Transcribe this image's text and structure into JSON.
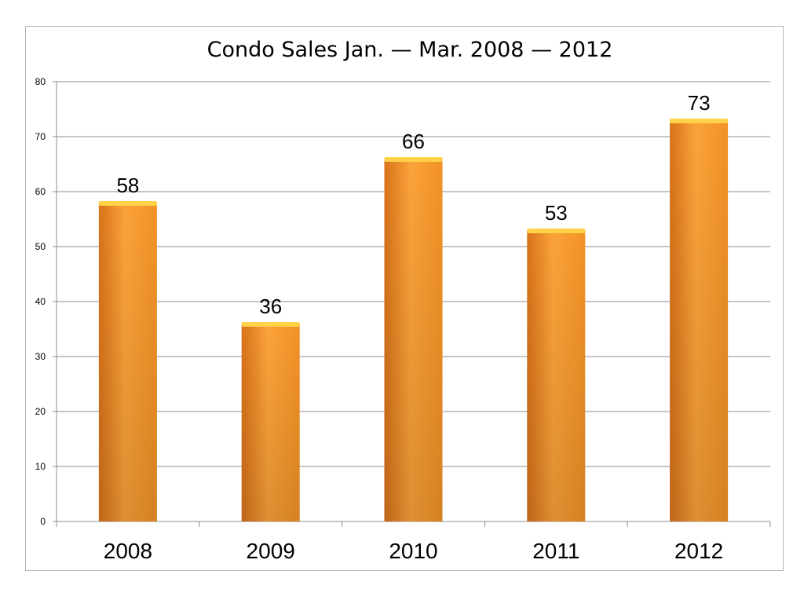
{
  "chart_data": {
    "type": "bar",
    "title": "Condo Sales Jan. — Mar. 2008 — 2012",
    "categories": [
      "2008",
      "2009",
      "2010",
      "2011",
      "2012"
    ],
    "values": [
      58,
      36,
      66,
      53,
      73
    ],
    "data_labels": [
      "58",
      "36",
      "66",
      "53",
      "73"
    ],
    "xlabel": "",
    "ylabel": "",
    "ylim": [
      0,
      80
    ],
    "yticks": [
      0,
      10,
      20,
      30,
      40,
      50,
      60,
      70,
      80
    ],
    "ytick_labels": [
      "0",
      "10",
      "20",
      "30",
      "40",
      "50",
      "60",
      "70",
      "80"
    ],
    "grid": true,
    "legend": "none",
    "colors": {
      "bar_light": "#fba33a",
      "bar_mid": "#f29226",
      "bar_dark": "#d8721a",
      "bar_top": "#ffd24a",
      "grid": "#8c8c8c",
      "axis": "#8c8c8c"
    }
  }
}
